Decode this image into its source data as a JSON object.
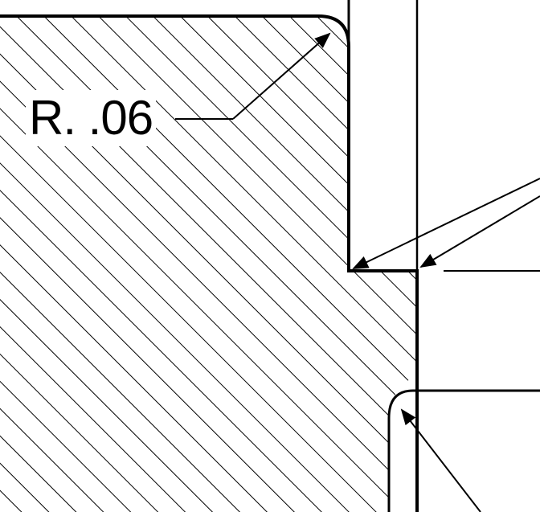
{
  "drawing": {
    "radius_label": "R. .06"
  },
  "colors": {
    "ink": "#000000",
    "paper": "#ffffff"
  }
}
